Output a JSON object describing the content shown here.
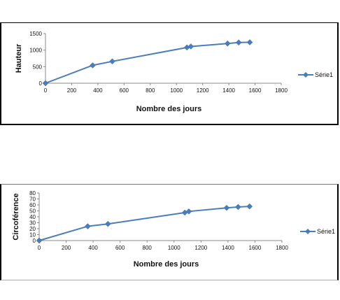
{
  "chart_data": [
    {
      "type": "line",
      "ylabel": "Hauteur",
      "xlabel": "Nombre des jours",
      "x": [
        0,
        360,
        510,
        1080,
        1110,
        1390,
        1475,
        1560
      ],
      "series": [
        {
          "name": "Série1",
          "values": [
            0,
            540,
            660,
            1080,
            1110,
            1200,
            1230,
            1235
          ]
        }
      ],
      "xlim": [
        0,
        1800
      ],
      "ylim": [
        0,
        1500
      ],
      "xticks": [
        0,
        200,
        400,
        600,
        800,
        1000,
        1200,
        1400,
        1600,
        1800
      ],
      "yticks": [
        0,
        500,
        1000,
        1500
      ],
      "grid": false,
      "legend": "right",
      "color": "#4a7ebb"
    },
    {
      "type": "line",
      "ylabel": "Circoférence",
      "xlabel": "Nombre des jours",
      "x": [
        0,
        360,
        510,
        1080,
        1110,
        1390,
        1475,
        1560
      ],
      "series": [
        {
          "name": "Série1",
          "values": [
            0,
            24,
            28,
            47,
            49,
            55,
            56.5,
            57.5
          ]
        }
      ],
      "xlim": [
        0,
        1800
      ],
      "ylim": [
        0,
        80
      ],
      "xticks": [
        0,
        200,
        400,
        600,
        800,
        1000,
        1200,
        1400,
        1600,
        1800
      ],
      "yticks": [
        0,
        10,
        20,
        30,
        40,
        50,
        60,
        70,
        80
      ],
      "grid": false,
      "legend": "right",
      "color": "#4a7ebb"
    }
  ]
}
